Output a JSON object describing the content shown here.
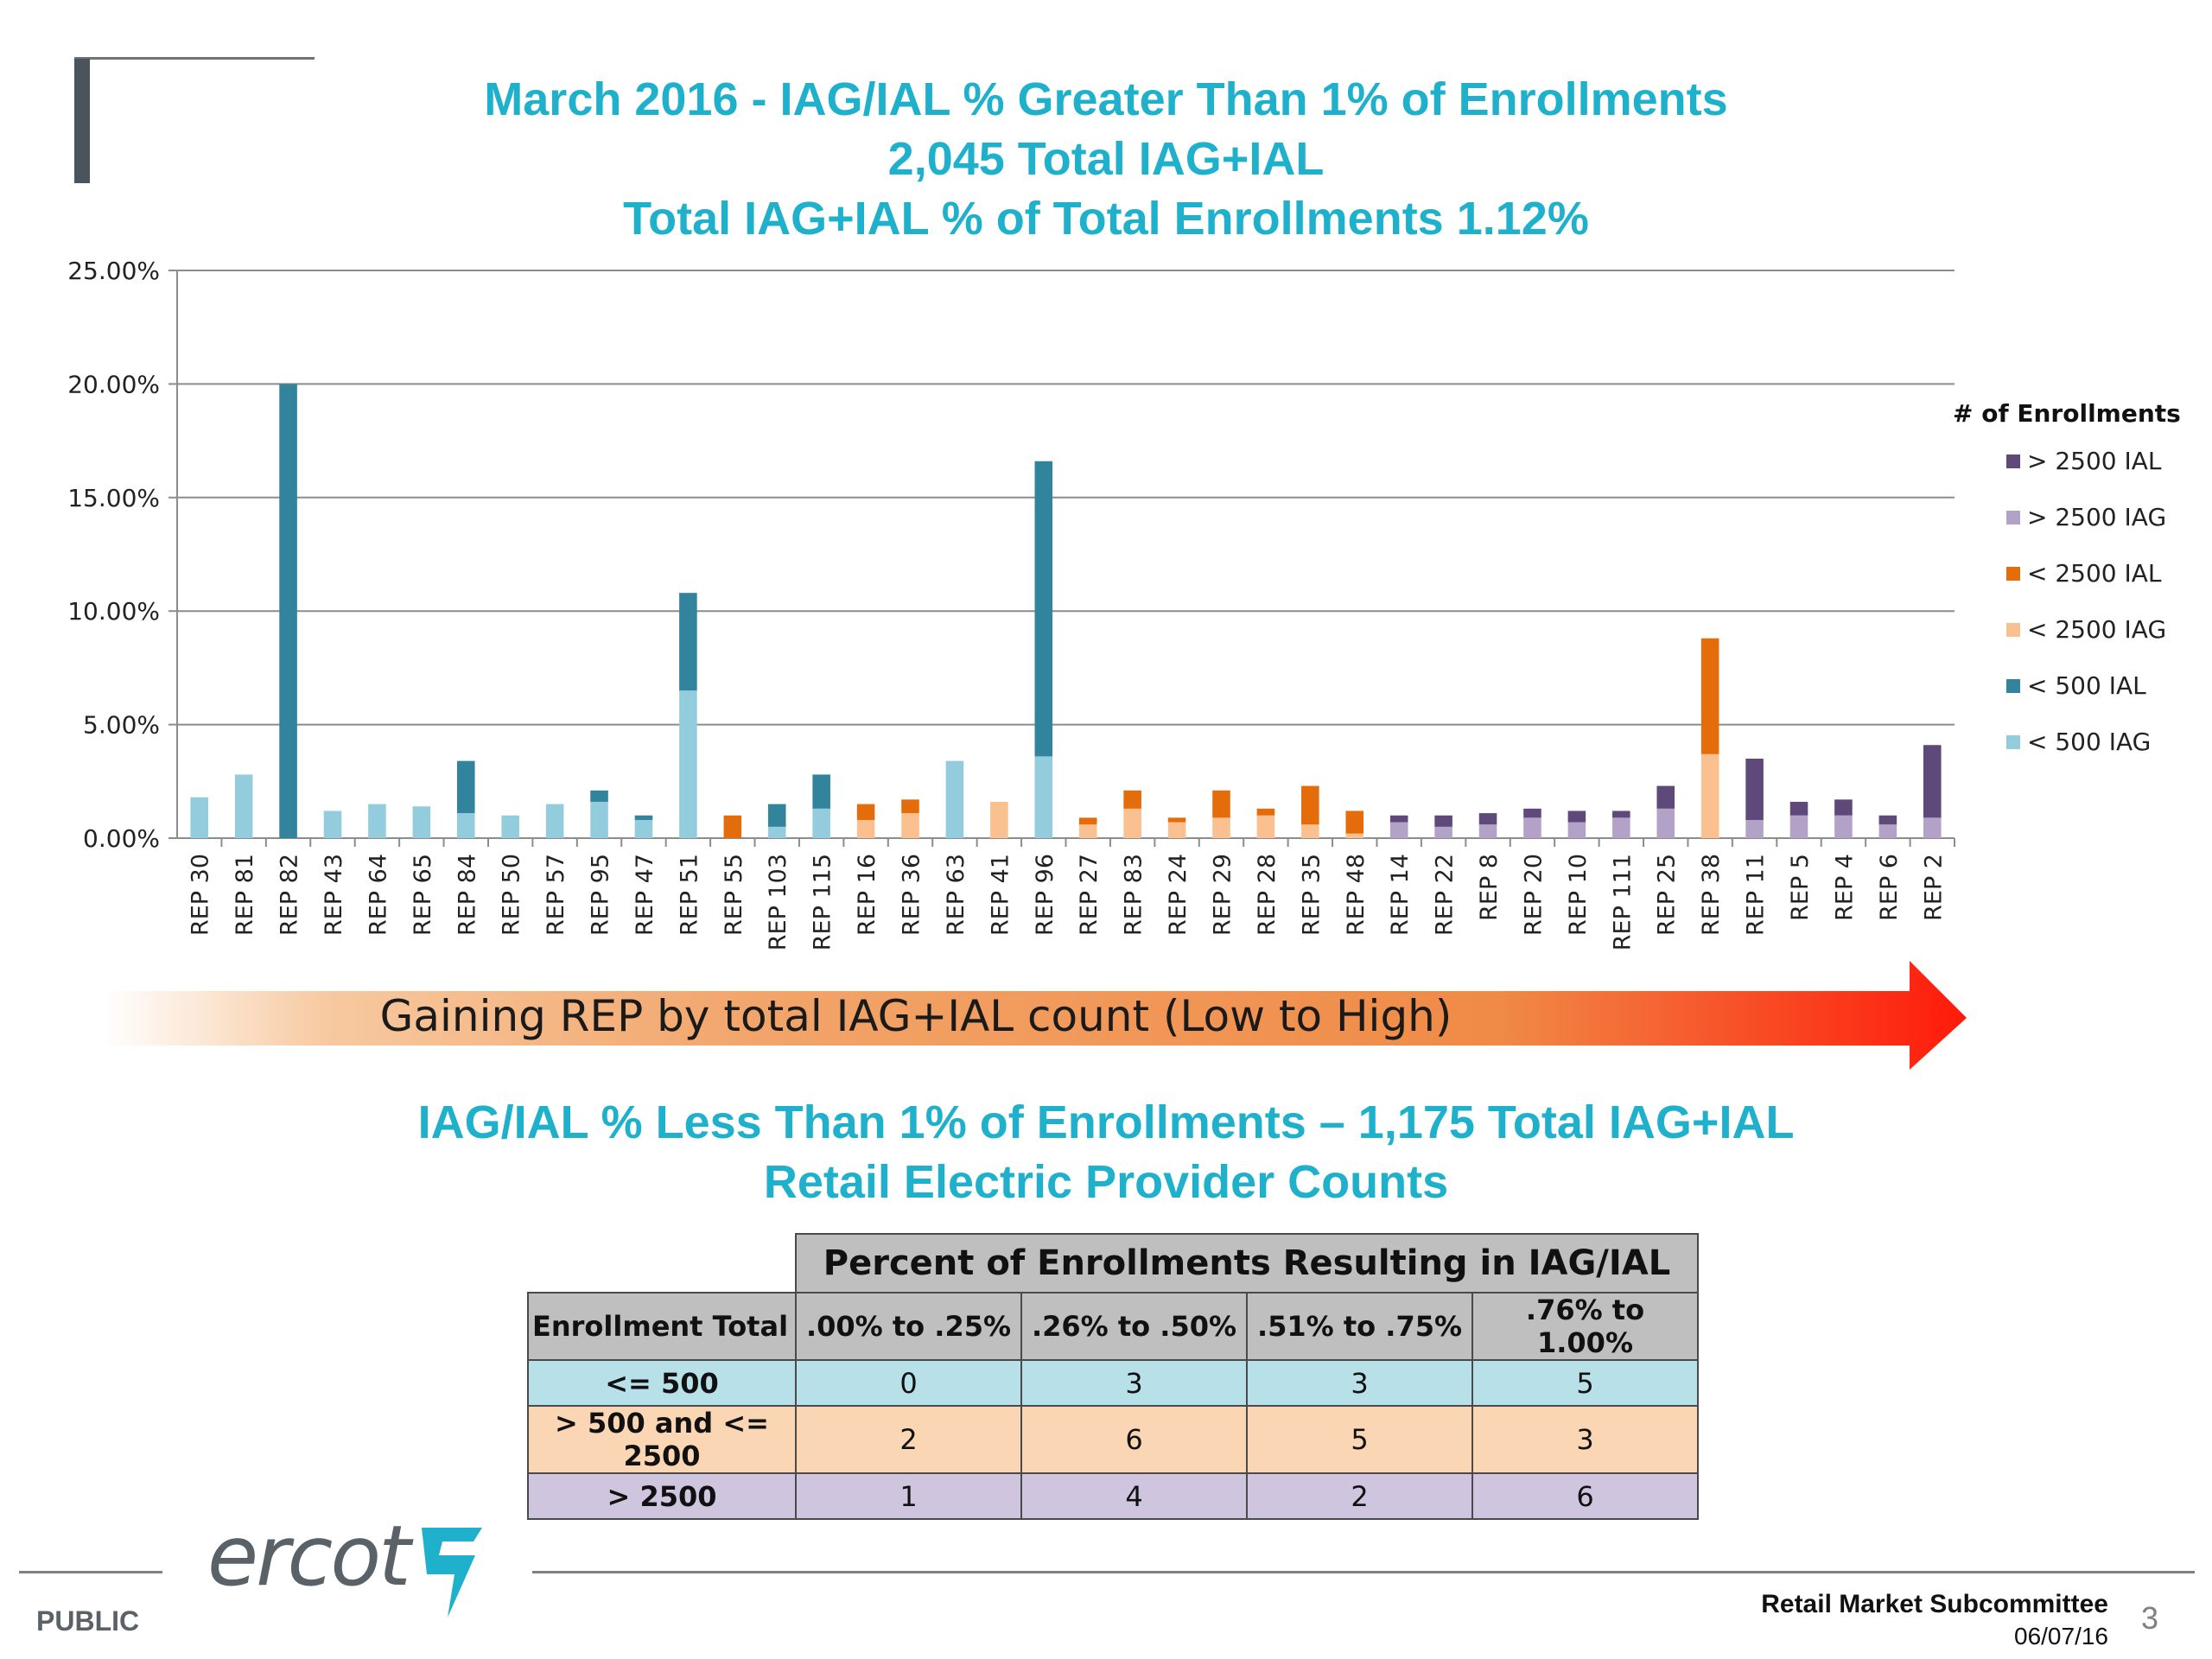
{
  "titles": {
    "line1": "March 2016 - IAG/IAL % Greater Than 1% of Enrollments",
    "line2": "2,045 Total IAG+IAL",
    "line3": "Total IAG+IAL % of Total Enrollments 1.12%"
  },
  "arrow_label": "Gaining REP by total IAG+IAL count (Low to High)",
  "subtitle": {
    "line1": "IAG/IAL % Less Than 1% of Enrollments – 1,175 Total IAG+IAL",
    "line2": "Retail Electric Provider Counts"
  },
  "chart_data": {
    "type": "bar",
    "stacked": true,
    "categories": [
      "REP 30",
      "REP 81",
      "REP 82",
      "REP 43",
      "REP 64",
      "REP 65",
      "REP 84",
      "REP 50",
      "REP 57",
      "REP 95",
      "REP 47",
      "REP 51",
      "REP 55",
      "REP 103",
      "REP 115",
      "REP 16",
      "REP 36",
      "REP 63",
      "REP 41",
      "REP 96",
      "REP 27",
      "REP 83",
      "REP 24",
      "REP 29",
      "REP 28",
      "REP 35",
      "REP 48",
      "REP 14",
      "REP 22",
      "REP 8",
      "REP 20",
      "REP 10",
      "REP 111",
      "REP 25",
      "REP 38",
      "REP 11",
      "REP 5",
      "REP 4",
      "REP 6",
      "REP 2"
    ],
    "ylim": [
      0,
      25
    ],
    "yticks": [
      "0.00%",
      "5.00%",
      "10.00%",
      "15.00%",
      "20.00%",
      "25.00%"
    ],
    "grid": true,
    "legend_title": "# of Enrollments",
    "legend_position": "right",
    "series": [
      {
        "name": "< 500 IAG",
        "color": "#93cddd",
        "values": [
          1.8,
          2.8,
          0,
          1.2,
          1.5,
          1.4,
          1.1,
          1.0,
          1.5,
          1.6,
          0.8,
          6.5,
          0,
          0.5,
          1.3,
          0,
          0,
          3.4,
          0,
          3.6,
          0,
          0,
          0,
          0,
          0,
          0,
          0,
          0,
          0,
          0,
          0,
          0,
          0,
          0,
          0,
          0,
          0,
          0,
          0,
          0
        ]
      },
      {
        "name": "< 500 IAL",
        "color": "#31849b",
        "values": [
          0,
          0,
          20.0,
          0,
          0,
          0,
          2.3,
          0,
          0,
          0.5,
          0.2,
          4.3,
          0,
          1.0,
          1.5,
          0,
          0,
          0,
          0,
          13.0,
          0,
          0,
          0,
          0,
          0,
          0,
          0,
          0,
          0,
          0,
          0,
          0,
          0,
          0,
          0,
          0,
          0,
          0,
          0,
          0
        ]
      },
      {
        "name": "< 2500 IAG",
        "color": "#fac090",
        "values": [
          0,
          0,
          0,
          0,
          0,
          0,
          0,
          0,
          0,
          0,
          0,
          0,
          0,
          0,
          0,
          0.8,
          1.1,
          0,
          1.6,
          0,
          0.6,
          1.3,
          0.7,
          0.9,
          1.0,
          0.6,
          0.2,
          0,
          0,
          0,
          0,
          0,
          0,
          0,
          3.7,
          0,
          0,
          0,
          0,
          0
        ]
      },
      {
        "name": "< 2500 IAL",
        "color": "#e46c0a",
        "values": [
          0,
          0,
          0,
          0,
          0,
          0,
          0,
          0,
          0,
          0,
          0,
          0,
          1.0,
          0,
          0,
          0.7,
          0.6,
          0,
          0,
          0,
          0.3,
          0.8,
          0.2,
          1.2,
          0.3,
          1.7,
          1.0,
          0,
          0,
          0,
          0,
          0,
          0,
          0,
          5.1,
          0,
          0,
          0,
          0,
          0
        ]
      },
      {
        "name": "> 2500 IAG",
        "color": "#b3a2c7",
        "values": [
          0,
          0,
          0,
          0,
          0,
          0,
          0,
          0,
          0,
          0,
          0,
          0,
          0,
          0,
          0,
          0,
          0,
          0,
          0,
          0,
          0,
          0,
          0,
          0,
          0,
          0,
          0,
          0.7,
          0.5,
          0.6,
          0.9,
          0.7,
          0.9,
          1.3,
          0,
          0.8,
          1.0,
          1.0,
          0.6,
          0.9
        ]
      },
      {
        "name": "> 2500 IAL",
        "color": "#5f497a",
        "values": [
          0,
          0,
          0,
          0,
          0,
          0,
          0,
          0,
          0,
          0,
          0,
          0,
          0,
          0,
          0,
          0,
          0,
          0,
          0,
          0,
          0,
          0,
          0,
          0,
          0,
          0,
          0,
          0.3,
          0.5,
          0.5,
          0.4,
          0.5,
          0.3,
          1.0,
          0,
          2.7,
          0.6,
          0.7,
          0.4,
          3.2
        ]
      }
    ],
    "legend_order": [
      "> 2500 IAL",
      "> 2500 IAG",
      "< 2500 IAL",
      "< 2500 IAG",
      "< 500 IAL",
      "< 500 IAG"
    ]
  },
  "table": {
    "header_top": "Percent of Enrollments Resulting in IAG/IAL",
    "col_headers": [
      "Enrollment Total",
      ".00% to .25%",
      ".26% to .50%",
      ".51% to .75%",
      ".76% to 1.00%"
    ],
    "rows": [
      {
        "label": "<= 500",
        "values": [
          "0",
          "3",
          "3",
          "5"
        ]
      },
      {
        "label": "> 500 and <= 2500",
        "values": [
          "2",
          "6",
          "5",
          "3"
        ]
      },
      {
        "label": "> 2500",
        "values": [
          "1",
          "4",
          "2",
          "6"
        ]
      }
    ]
  },
  "footer": {
    "logo": "ercot",
    "classification": "PUBLIC",
    "committee": "Retail Market Subcommittee",
    "date": "06/07/16",
    "page": "3"
  }
}
